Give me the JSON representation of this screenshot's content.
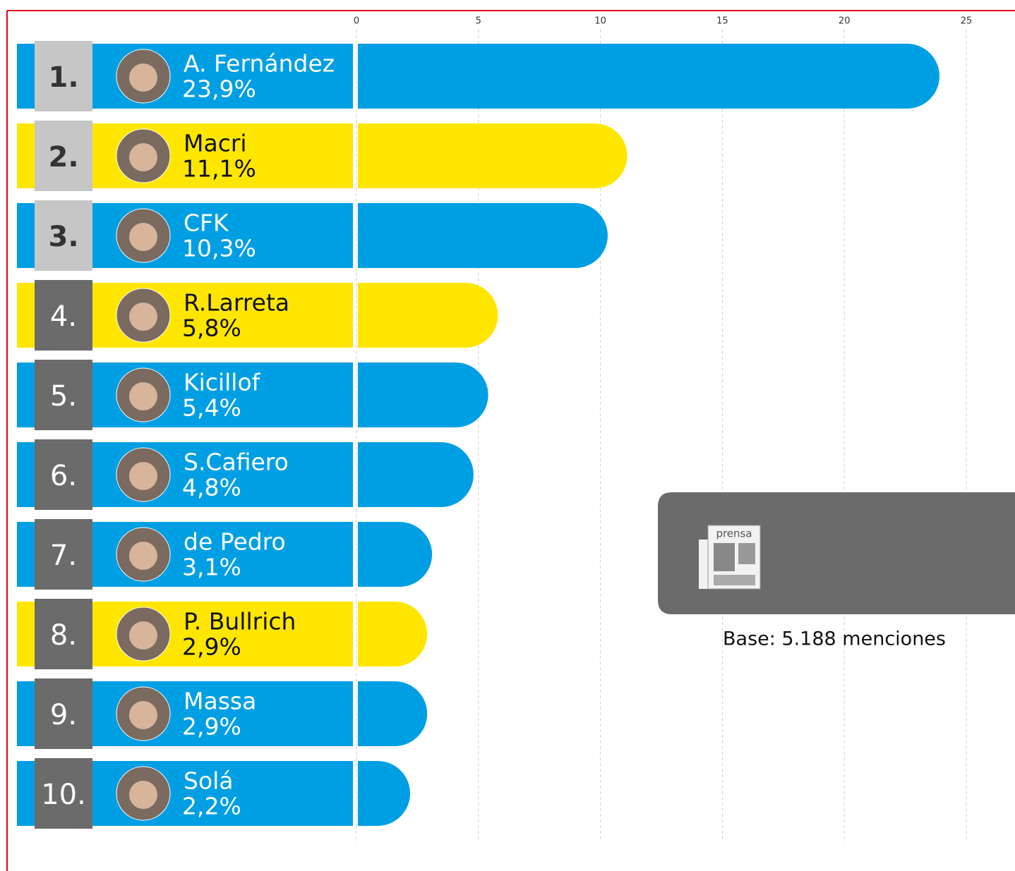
{
  "chart_data": {
    "type": "bar",
    "categories": [
      "A. Fernández",
      "Macri",
      "CFK",
      "R.Larreta",
      "Kicillof",
      "S.Cafiero",
      "de Pedro",
      "P. Bullrich",
      "Massa",
      "Solá"
    ],
    "ranks": [
      "1.",
      "2.",
      "3.",
      "4.",
      "5.",
      "6.",
      "7.",
      "8.",
      "9.",
      "10."
    ],
    "values": [
      23.9,
      11.1,
      10.3,
      5.8,
      5.4,
      4.8,
      3.1,
      2.9,
      2.9,
      2.2
    ],
    "value_labels": [
      "23,9%",
      "11,1%",
      "10,3%",
      "5,8%",
      "5,4%",
      "4,8%",
      "3,1%",
      "2,9%",
      "2,9%",
      "2,2%"
    ],
    "colors": [
      "#009fe3",
      "#ffe600",
      "#009fe3",
      "#ffe600",
      "#009fe3",
      "#009fe3",
      "#009fe3",
      "#ffe600",
      "#009fe3",
      "#009fe3"
    ],
    "rank_colors": [
      "#c6c6c6",
      "#c6c6c6",
      "#c6c6c6",
      "#6b6b6b",
      "#6b6b6b",
      "#6b6b6b",
      "#6b6b6b",
      "#6b6b6b",
      "#6b6b6b",
      "#6b6b6b"
    ],
    "rank_bold": [
      true,
      true,
      true,
      false,
      false,
      false,
      false,
      false,
      false,
      false
    ],
    "xlim": [
      0,
      25
    ],
    "xticks": [
      0,
      5,
      10,
      15,
      20,
      25
    ],
    "grid": true,
    "source_label": "prensa",
    "annotation": "Base: 5.188 menciones"
  }
}
